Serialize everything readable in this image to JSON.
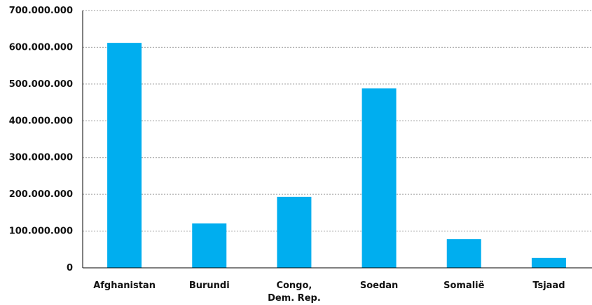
{
  "chart_data": {
    "type": "bar",
    "categories": [
      "Afghanistan",
      "Burundi",
      "Congo, Dem. Rep.",
      "Soedan",
      "Somaliё",
      "Tsjaad"
    ],
    "category_label_lines": [
      [
        "Afghanistan"
      ],
      [
        "Burundi"
      ],
      [
        "Congo,",
        "Dem. Rep."
      ],
      [
        "Soedan"
      ],
      [
        "Somaliё"
      ],
      [
        "Tsjaad"
      ]
    ],
    "values": [
      612000000,
      121000000,
      193000000,
      488000000,
      78000000,
      27000000
    ],
    "ylim": [
      0,
      700000000
    ],
    "yticks": [
      0,
      100000000,
      200000000,
      300000000,
      400000000,
      500000000,
      600000000,
      700000000
    ],
    "ytick_labels": [
      "0",
      "100.000.000",
      "200.000.000",
      "300.000.000",
      "400.000.000",
      "500.000.000",
      "600.000.000",
      "700.000.000"
    ],
    "title": "",
    "xlabel": "",
    "ylabel": "",
    "grid": true,
    "legend": "none",
    "bar_color": "#00aeef"
  }
}
